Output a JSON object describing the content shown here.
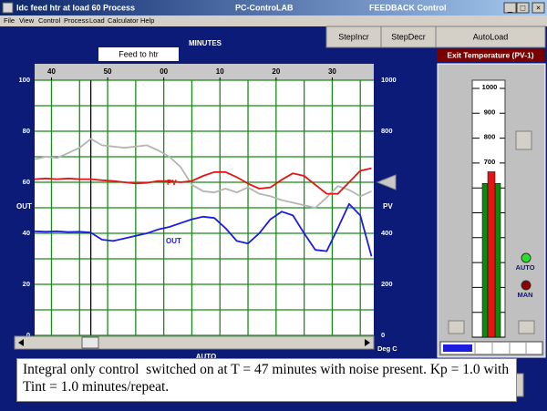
{
  "window": {
    "title": "Idc feed htr at load 60 Process",
    "app": "PC-ControLAB",
    "mode": "FEEDBACK Control"
  },
  "menu": [
    "File",
    "View",
    "Control",
    "Process",
    "Load",
    "Calculator",
    "Help"
  ],
  "buttons": [
    "StepIncr",
    "StepDecr",
    "AutoLoad"
  ],
  "chart_data": {
    "type": "line",
    "xlabel": "MINUTES",
    "input_label": "Feed to htr",
    "ylabel": "OUT",
    "y2label": "PV",
    "y2unit": "Deg C",
    "x": [
      37,
      39,
      41,
      43,
      45,
      47,
      49,
      51,
      53,
      55,
      57,
      59,
      61,
      63,
      65,
      67,
      69,
      71,
      73,
      75,
      77,
      79,
      81,
      83,
      85,
      87,
      89,
      91,
      93,
      95,
      97
    ],
    "xlim": [
      37,
      97.4
    ],
    "xticks": [
      40,
      50,
      {
        "value": 60,
        "label": "00"
      },
      {
        "value": 70,
        "label": "10"
      },
      {
        "value": 80,
        "label": "20"
      },
      {
        "value": 90,
        "label": "30"
      }
    ],
    "xgrid": [
      40,
      45,
      50,
      55,
      60,
      65,
      70,
      75,
      80,
      85,
      90,
      95
    ],
    "ylim": [
      0,
      100
    ],
    "yticks": [
      0,
      20,
      40,
      60,
      80,
      100
    ],
    "ygrid": [
      0,
      10,
      20,
      30,
      40,
      50,
      60,
      70,
      80,
      90,
      100
    ],
    "y2lim": [
      0,
      1000
    ],
    "y2ticks": [
      0,
      200,
      400,
      600,
      800,
      1000
    ],
    "setpoint": 600,
    "event_x": 47,
    "series": [
      {
        "color": "#b4b4b4",
        "axis": "y2",
        "values": [
          690,
          700,
          695,
          715,
          735,
          770,
          745,
          740,
          735,
          740,
          745,
          725,
          700,
          660,
          590,
          565,
          560,
          575,
          560,
          580,
          555,
          545,
          530,
          520,
          510,
          500,
          540,
          585,
          570,
          545,
          565
        ]
      },
      {
        "name": "PV",
        "color": "#e41414",
        "axis": "y2",
        "values": [
          612,
          615,
          612,
          615,
          612,
          612,
          608,
          605,
          600,
          595,
          598,
          605,
          605,
          600,
          605,
          625,
          640,
          640,
          620,
          595,
          575,
          580,
          610,
          635,
          625,
          590,
          555,
          555,
          600,
          645,
          655
        ]
      },
      {
        "name": "OUT",
        "color": "#1c1ce0",
        "values": [
          40.8,
          40.6,
          40.8,
          40.5,
          40.6,
          40.3,
          37.5,
          37,
          38,
          39,
          40,
          41.5,
          42.5,
          44,
          45.5,
          46.5,
          46,
          42,
          37,
          36,
          40,
          45.5,
          48.5,
          47,
          40,
          33.5,
          33,
          42,
          51.5,
          47,
          31
        ]
      }
    ]
  },
  "mode_label": "AUTO",
  "gauge": {
    "title": "Exit Temperature (PV-1)",
    "lim": [
      0,
      1000
    ],
    "ticks": [
      700,
      800,
      900,
      1000
    ],
    "lines": [
      0,
      100,
      200,
      300,
      400,
      500,
      600,
      700,
      800,
      900,
      1000
    ],
    "pv": 665,
    "sp": 618,
    "status": [
      "AUTO",
      "MAN"
    ]
  },
  "note": "Integral only control  switched on at T = 47 minutes with noise present. Kp = 1.0 with Tint = 1.0 minutes/repeat."
}
